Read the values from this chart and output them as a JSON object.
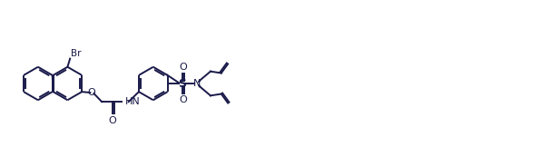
{
  "bg_color": "#ffffff",
  "line_color": "#1a1a4a",
  "line_width": 1.4,
  "fig_width": 6.06,
  "fig_height": 1.84,
  "dpi": 100,
  "r": 0.95,
  "xlim": [
    0.0,
    33.0
  ],
  "ylim": [
    0.5,
    10.5
  ]
}
